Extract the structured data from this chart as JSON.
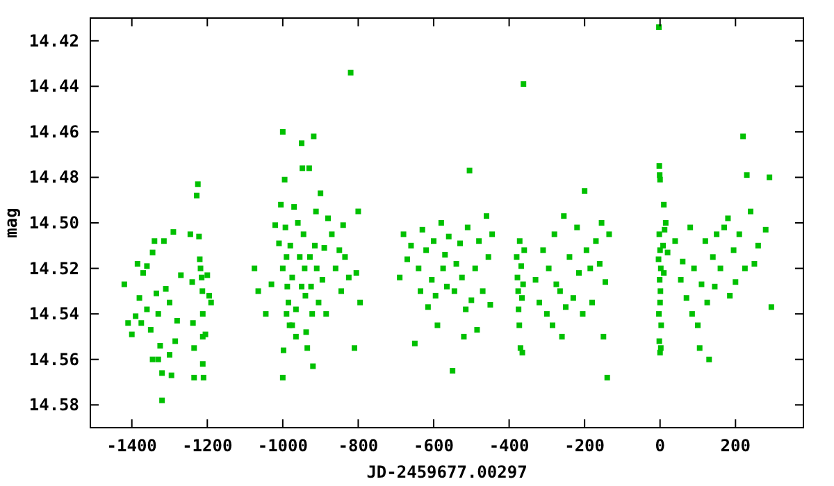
{
  "chart_data": {
    "type": "scatter",
    "xlabel": "JD-2459677.00297",
    "ylabel": "mag",
    "xlim": [
      -1510,
      380
    ],
    "ylim": [
      14.59,
      14.41
    ],
    "xticks": [
      -1400,
      -1200,
      -1000,
      -800,
      -600,
      -400,
      -200,
      0,
      200
    ],
    "yticks": [
      14.42,
      14.44,
      14.46,
      14.48,
      {
        "value": 14.5,
        "label": "14.50"
      },
      14.52,
      14.54,
      14.56,
      14.58
    ],
    "grid": false,
    "marker": "square",
    "series": [
      {
        "color": "#00c000",
        "x": [
          -1420,
          -1410,
          -1400,
          -1390,
          -1380,
          -1370,
          -1360,
          -1350,
          -1340,
          -1335,
          -1330,
          -1325,
          -1320,
          -1320,
          -1315,
          -1310,
          -1300,
          -1295,
          -1290,
          -1285,
          -1280,
          -1270,
          -1360,
          -1345,
          -1330,
          -1300,
          -1345,
          -1375,
          -1385,
          -1245,
          -1240,
          -1238,
          -1235,
          -1235,
          -1228,
          -1225,
          -1222,
          -1220,
          -1218,
          -1215,
          -1213,
          -1212,
          -1212,
          -1212,
          -1210,
          -1205,
          -1200,
          -1190,
          -1195,
          -1075,
          -1065,
          -1045,
          -1030,
          -1020,
          -1010,
          -1005,
          -1000,
          -1000,
          -998,
          -995,
          -993,
          -990,
          -988,
          -985,
          -982,
          -980,
          -975,
          -970,
          -965,
          -960,
          -955,
          -950,
          -948,
          -945,
          -942,
          -940,
          -938,
          -935,
          -930,
          -928,
          -925,
          -922,
          -920,
          -918,
          -915,
          -912,
          -910,
          -905,
          -900,
          -895,
          -890,
          -885,
          -880,
          -870,
          -860,
          -850,
          -845,
          -840,
          -835,
          -825,
          -820,
          -810,
          -805,
          -800,
          -795,
          -965,
          -950,
          -975,
          -1000,
          -990,
          -690,
          -680,
          -670,
          -660,
          -650,
          -640,
          -635,
          -630,
          -620,
          -615,
          -605,
          -600,
          -595,
          -590,
          -580,
          -575,
          -570,
          -565,
          -560,
          -550,
          -545,
          -540,
          -530,
          -525,
          -520,
          -515,
          -510,
          -505,
          -500,
          -490,
          -485,
          -480,
          -470,
          -460,
          -455,
          -450,
          -445,
          -380,
          -378,
          -376,
          -375,
          -373,
          -372,
          -370,
          -368,
          -366,
          -365,
          -363,
          -362,
          -360,
          -330,
          -320,
          -310,
          -300,
          -295,
          -285,
          -280,
          -275,
          -265,
          -260,
          -255,
          -250,
          -240,
          -230,
          -220,
          -215,
          -205,
          -200,
          -195,
          -185,
          -180,
          -170,
          -160,
          -155,
          -150,
          -140,
          -135,
          -145,
          -3,
          -2,
          -1,
          0,
          -2,
          0,
          2,
          -1,
          1,
          0,
          -3,
          3,
          -2,
          2,
          0,
          -4,
          10,
          12,
          8,
          15,
          10,
          20,
          40,
          55,
          60,
          70,
          80,
          85,
          90,
          100,
          105,
          110,
          120,
          125,
          130,
          140,
          145,
          150,
          160,
          170,
          180,
          185,
          195,
          200,
          210,
          220,
          225,
          230,
          240,
          250,
          260,
          280,
          290,
          295
        ],
        "values": [
          14.527,
          14.544,
          14.549,
          14.541,
          14.533,
          14.522,
          14.538,
          14.547,
          14.508,
          14.531,
          14.54,
          14.554,
          14.566,
          14.578,
          14.508,
          14.529,
          14.535,
          14.567,
          14.504,
          14.552,
          14.543,
          14.523,
          14.519,
          14.56,
          14.56,
          14.558,
          14.513,
          14.544,
          14.518,
          14.505,
          14.526,
          14.544,
          14.555,
          14.568,
          14.488,
          14.483,
          14.506,
          14.516,
          14.52,
          14.524,
          14.53,
          14.54,
          14.55,
          14.562,
          14.568,
          14.549,
          14.523,
          14.535,
          14.532,
          14.52,
          14.53,
          14.54,
          14.527,
          14.501,
          14.509,
          14.492,
          14.46,
          14.568,
          14.556,
          14.481,
          14.502,
          14.515,
          14.528,
          14.535,
          14.545,
          14.51,
          14.524,
          14.493,
          14.538,
          14.5,
          14.515,
          14.465,
          14.476,
          14.505,
          14.52,
          14.532,
          14.548,
          14.555,
          14.476,
          14.515,
          14.528,
          14.54,
          14.563,
          14.462,
          14.51,
          14.495,
          14.52,
          14.535,
          14.487,
          14.525,
          14.511,
          14.54,
          14.498,
          14.505,
          14.52,
          14.512,
          14.53,
          14.501,
          14.515,
          14.524,
          14.434,
          14.555,
          14.522,
          14.495,
          14.535,
          14.55,
          14.528,
          14.545,
          14.52,
          14.54,
          14.524,
          14.505,
          14.516,
          14.51,
          14.553,
          14.52,
          14.53,
          14.503,
          14.512,
          14.537,
          14.525,
          14.508,
          14.532,
          14.545,
          14.5,
          14.52,
          14.514,
          14.528,
          14.506,
          14.565,
          14.53,
          14.518,
          14.509,
          14.524,
          14.55,
          14.538,
          14.502,
          14.477,
          14.534,
          14.52,
          14.547,
          14.508,
          14.53,
          14.497,
          14.515,
          14.536,
          14.505,
          14.515,
          14.524,
          14.53,
          14.538,
          14.545,
          14.508,
          14.555,
          14.519,
          14.533,
          14.557,
          14.527,
          14.439,
          14.512,
          14.525,
          14.535,
          14.512,
          14.54,
          14.52,
          14.545,
          14.505,
          14.527,
          14.53,
          14.55,
          14.497,
          14.537,
          14.515,
          14.533,
          14.502,
          14.522,
          14.54,
          14.486,
          14.512,
          14.52,
          14.535,
          14.508,
          14.518,
          14.5,
          14.55,
          14.568,
          14.505,
          14.526,
          14.414,
          14.475,
          14.479,
          14.481,
          14.505,
          14.512,
          14.52,
          14.525,
          14.53,
          14.535,
          14.54,
          14.545,
          14.552,
          14.555,
          14.557,
          14.516,
          14.492,
          14.503,
          14.51,
          14.5,
          14.522,
          14.513,
          14.508,
          14.525,
          14.517,
          14.533,
          14.502,
          14.54,
          14.52,
          14.545,
          14.555,
          14.527,
          14.508,
          14.535,
          14.56,
          14.515,
          14.528,
          14.505,
          14.52,
          14.502,
          14.498,
          14.532,
          14.512,
          14.526,
          14.505,
          14.462,
          14.52,
          14.479,
          14.495,
          14.518,
          14.51,
          14.503,
          14.48,
          14.537
        ]
      }
    ]
  }
}
